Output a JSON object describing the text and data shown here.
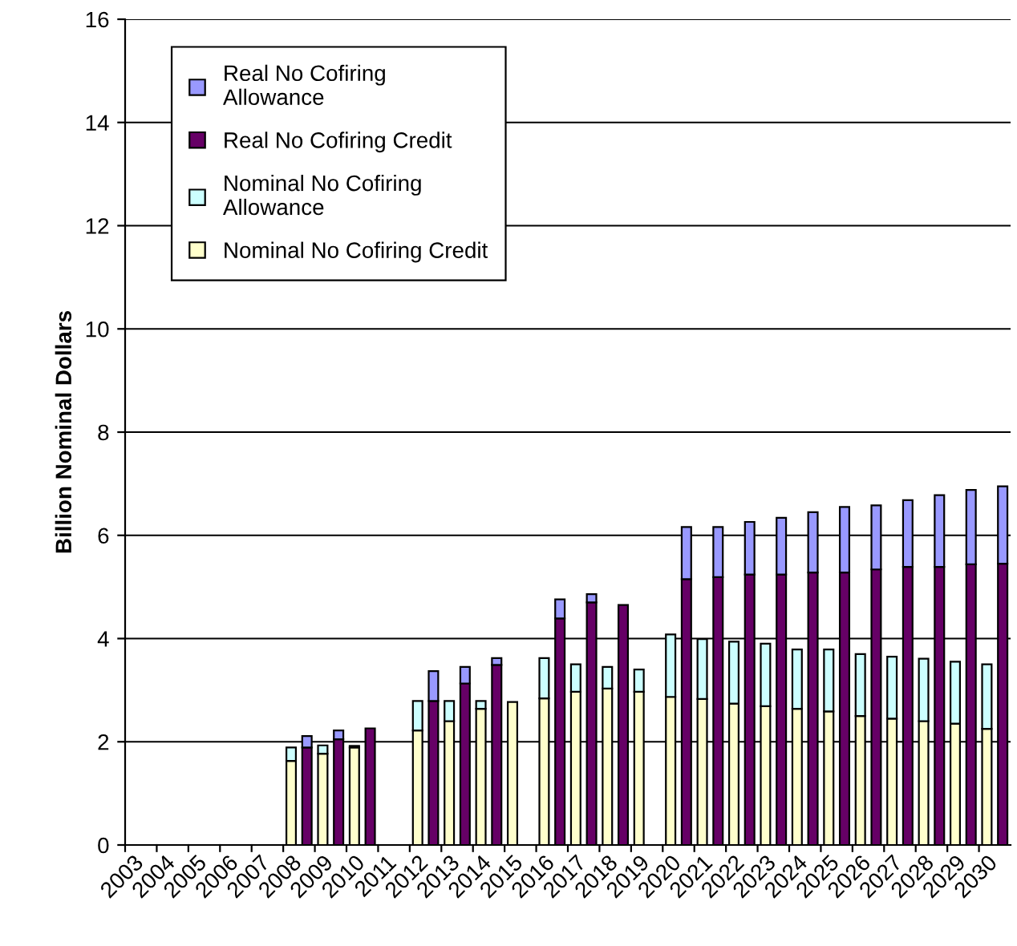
{
  "chart_data": {
    "type": "bar",
    "stacked": true,
    "ylabel": "Billion Nominal Dollars",
    "categories": [
      "2003",
      null,
      "2004",
      null,
      "2005",
      null,
      "2006",
      null,
      "2007",
      null,
      "2008",
      null,
      "2009",
      null,
      "2010",
      null,
      "2011",
      null,
      "2012",
      null,
      "2013",
      null,
      "2014",
      null,
      "2015",
      null,
      "2016",
      null,
      "2017",
      null,
      "2018",
      null,
      "2019",
      null,
      "2020",
      null,
      "2021",
      null,
      "2022",
      null,
      "2023",
      null,
      "2024",
      null,
      "2025",
      null,
      "2026",
      null,
      "2027",
      null,
      "2028",
      null,
      "2029",
      null,
      "2030",
      null
    ],
    "series": [
      {
        "name": "Nominal No Cofiring Credit",
        "color": "#ffffcc",
        "values": [
          null,
          null,
          null,
          null,
          null,
          null,
          null,
          null,
          null,
          null,
          1.63,
          null,
          1.77,
          null,
          1.89,
          null,
          null,
          null,
          2.22,
          null,
          2.4,
          null,
          2.64,
          null,
          2.77,
          null,
          2.84,
          null,
          2.97,
          null,
          3.03,
          null,
          2.97,
          null,
          2.87,
          null,
          2.83,
          null,
          2.74,
          null,
          2.69,
          null,
          2.64,
          null,
          2.59,
          null,
          2.5,
          null,
          2.45,
          null,
          2.4,
          null,
          2.35,
          null,
          2.25,
          null
        ]
      },
      {
        "name": "Nominal No Cofiring\nAllowance",
        "color": "#ccffff",
        "values": [
          null,
          null,
          null,
          null,
          null,
          null,
          null,
          null,
          null,
          null,
          0.26,
          null,
          0.16,
          null,
          0.03,
          null,
          null,
          null,
          0.57,
          null,
          0.39,
          null,
          0.15,
          null,
          null,
          null,
          0.78,
          null,
          0.53,
          null,
          0.42,
          null,
          0.43,
          null,
          1.21,
          null,
          1.16,
          null,
          1.2,
          null,
          1.21,
          null,
          1.15,
          null,
          1.2,
          null,
          1.2,
          null,
          1.2,
          null,
          1.21,
          null,
          1.2,
          null,
          1.25,
          null
        ]
      },
      {
        "name": "Real No Cofiring Credit",
        "color": "#660066",
        "values": [
          null,
          null,
          null,
          null,
          null,
          null,
          null,
          null,
          null,
          null,
          null,
          1.89,
          null,
          2.05,
          null,
          2.26,
          null,
          null,
          null,
          2.79,
          null,
          3.13,
          null,
          3.49,
          null,
          null,
          null,
          4.39,
          null,
          4.7,
          null,
          4.65,
          null,
          null,
          null,
          5.15,
          null,
          5.19,
          null,
          5.24,
          null,
          5.24,
          null,
          5.28,
          null,
          5.28,
          null,
          5.34,
          null,
          5.39,
          null,
          5.39,
          null,
          5.44,
          null,
          5.45
        ]
      },
      {
        "name": "Real No Cofiring\nAllowance",
        "color": "#9999ff",
        "values": [
          null,
          null,
          null,
          null,
          null,
          null,
          null,
          null,
          null,
          null,
          null,
          0.22,
          null,
          0.17,
          null,
          null,
          null,
          null,
          null,
          0.58,
          null,
          0.32,
          null,
          0.13,
          null,
          null,
          null,
          0.37,
          null,
          0.16,
          null,
          null,
          null,
          null,
          null,
          1.01,
          null,
          0.97,
          null,
          1.02,
          null,
          1.1,
          null,
          1.17,
          null,
          1.27,
          null,
          1.24,
          null,
          1.29,
          null,
          1.39,
          null,
          1.44,
          null,
          1.5
        ]
      }
    ],
    "ylim": [
      0,
      16
    ],
    "yticks": [
      0,
      2,
      4,
      6,
      8,
      10,
      12,
      14,
      16
    ],
    "grid": "y",
    "legend": "top left"
  }
}
